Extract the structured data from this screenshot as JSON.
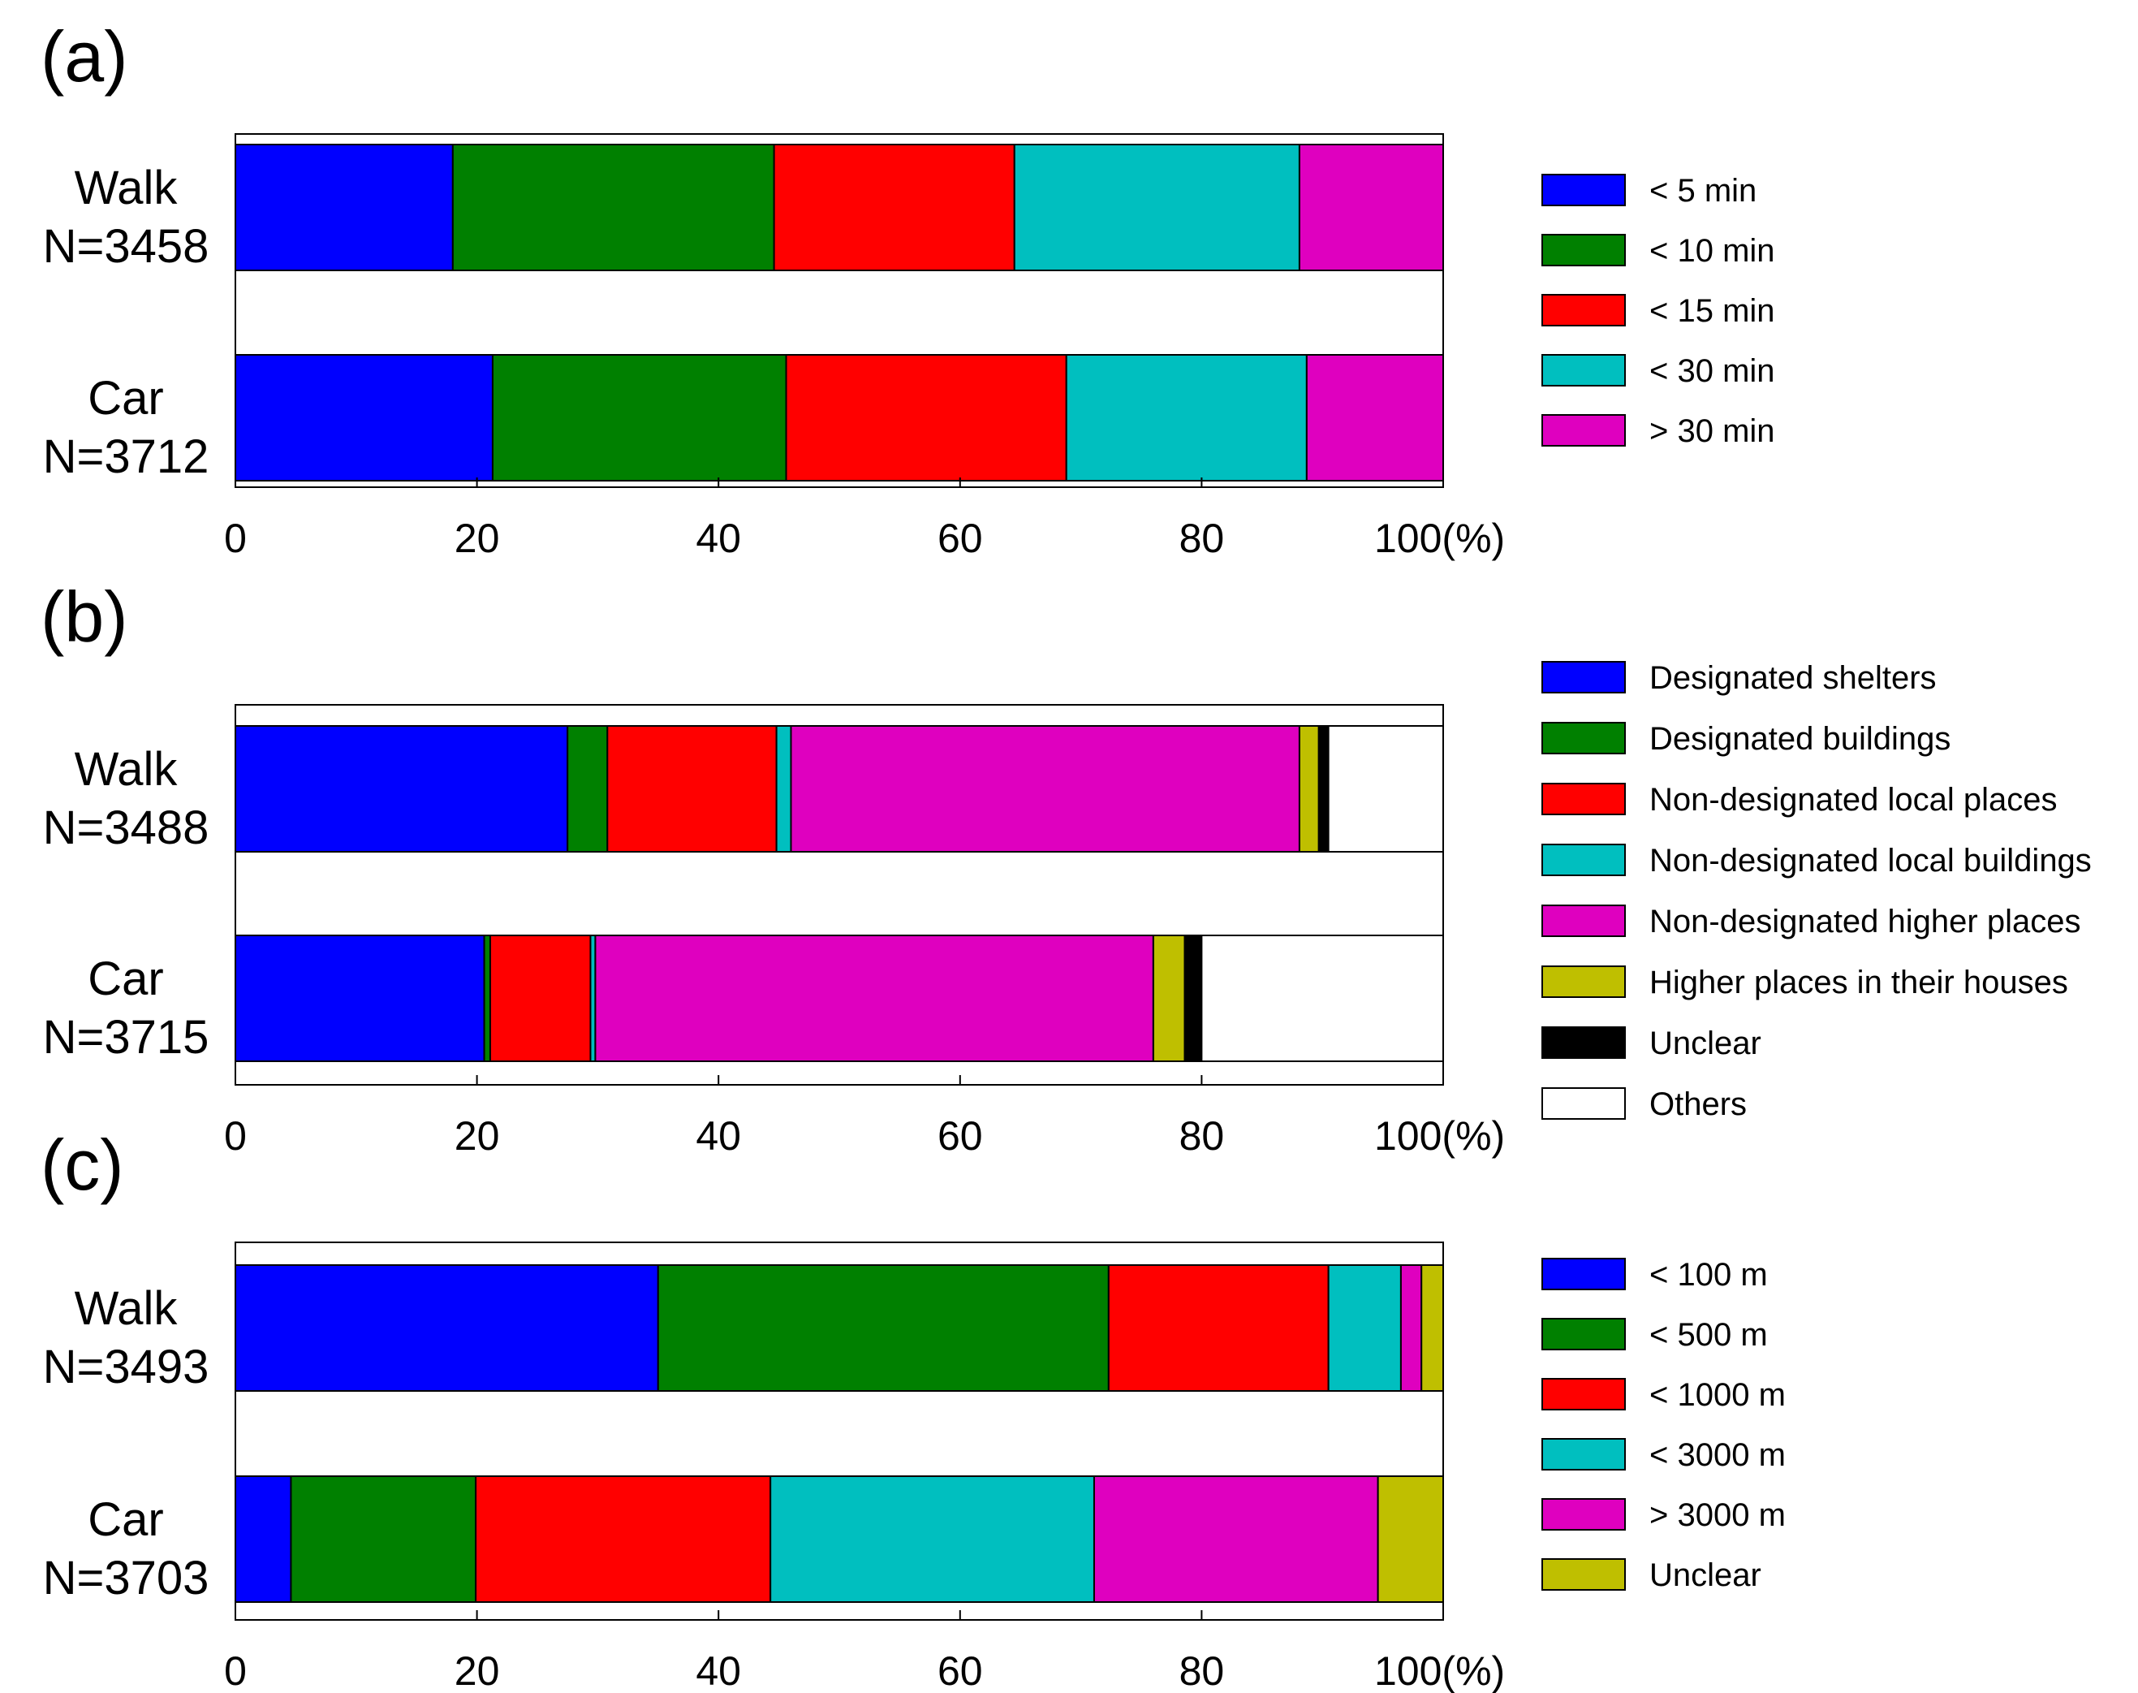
{
  "chart_data": [
    {
      "panel": "(a)",
      "type": "bar",
      "orientation": "horizontal",
      "stacked": true,
      "categories": [
        [
          "Walk",
          "N=3458"
        ],
        [
          "Car",
          "N=3712"
        ]
      ],
      "series": [
        {
          "name": "< 5 min",
          "color": "#0000ff",
          "values": [
            18.0,
            21.3
          ]
        },
        {
          "name": "< 10 min",
          "color": "#008000",
          "values": [
            26.6,
            24.3
          ]
        },
        {
          "name": "< 15 min",
          "color": "#ff0000",
          "values": [
            19.9,
            23.2
          ]
        },
        {
          "name": "< 30 min",
          "color": "#00bfbf",
          "values": [
            23.6,
            19.9
          ]
        },
        {
          "name": "> 30 min",
          "color": "#df00bf",
          "values": [
            11.9,
            11.3
          ]
        }
      ],
      "xlim": [
        0,
        100
      ],
      "xticks": [
        "0",
        "20",
        "40",
        "60",
        "80",
        "100(%)"
      ],
      "xlabel": "",
      "ylabel": "",
      "legend_position": "right"
    },
    {
      "panel": "(b)",
      "type": "bar",
      "orientation": "horizontal",
      "stacked": true,
      "categories": [
        [
          "Walk",
          "N=3488"
        ],
        [
          "Car",
          "N=3715"
        ]
      ],
      "series": [
        {
          "name": "Designated shelters",
          "color": "#0000ff",
          "values": [
            27.5,
            20.6
          ]
        },
        {
          "name": "Designated buildings",
          "color": "#008000",
          "values": [
            3.3,
            0.5
          ]
        },
        {
          "name": "Non-designated local places",
          "color": "#ff0000",
          "values": [
            14.0,
            8.3
          ]
        },
        {
          "name": "Non-designated local buildings",
          "color": "#00bfbf",
          "values": [
            1.2,
            0.4
          ]
        },
        {
          "name": "Non-designated higher places",
          "color": "#df00bf",
          "values": [
            42.1,
            46.2
          ]
        },
        {
          "name": "Higher places in their houses",
          "color": "#bfbf00",
          "values": [
            1.6,
            2.6
          ]
        },
        {
          "name": "Unclear",
          "color": "#000000",
          "values": [
            0.8,
            1.4
          ]
        },
        {
          "name": "Others",
          "color": "#ffffff",
          "values": [
            9.5,
            20.0
          ]
        }
      ],
      "xlim": [
        0,
        100
      ],
      "xticks": [
        "0",
        "20",
        "40",
        "60",
        "80",
        "100(%)"
      ],
      "xlabel": "",
      "ylabel": "",
      "legend_position": "right"
    },
    {
      "panel": "(c)",
      "type": "bar",
      "orientation": "horizontal",
      "stacked": true,
      "categories": [
        [
          "Walk",
          "N=3493"
        ],
        [
          "Car",
          "N=3703"
        ]
      ],
      "series": [
        {
          "name": "< 100 m",
          "color": "#0000ff",
          "values": [
            35.0,
            4.6
          ]
        },
        {
          "name": "< 500 m",
          "color": "#008000",
          "values": [
            37.3,
            15.3
          ]
        },
        {
          "name": "< 1000 m",
          "color": "#ff0000",
          "values": [
            18.2,
            24.4
          ]
        },
        {
          "name": "< 3000 m",
          "color": "#00bfbf",
          "values": [
            6.0,
            26.8
          ]
        },
        {
          "name": "> 3000 m",
          "color": "#df00bf",
          "values": [
            1.7,
            23.5
          ]
        },
        {
          "name": "Unclear",
          "color": "#bfbf00",
          "values": [
            1.8,
            5.4
          ]
        }
      ],
      "xlim": [
        0,
        100
      ],
      "xticks": [
        "0",
        "20",
        "40",
        "60",
        "80",
        "100(%)"
      ],
      "xlabel": "",
      "ylabel": "",
      "legend_position": "right"
    }
  ]
}
